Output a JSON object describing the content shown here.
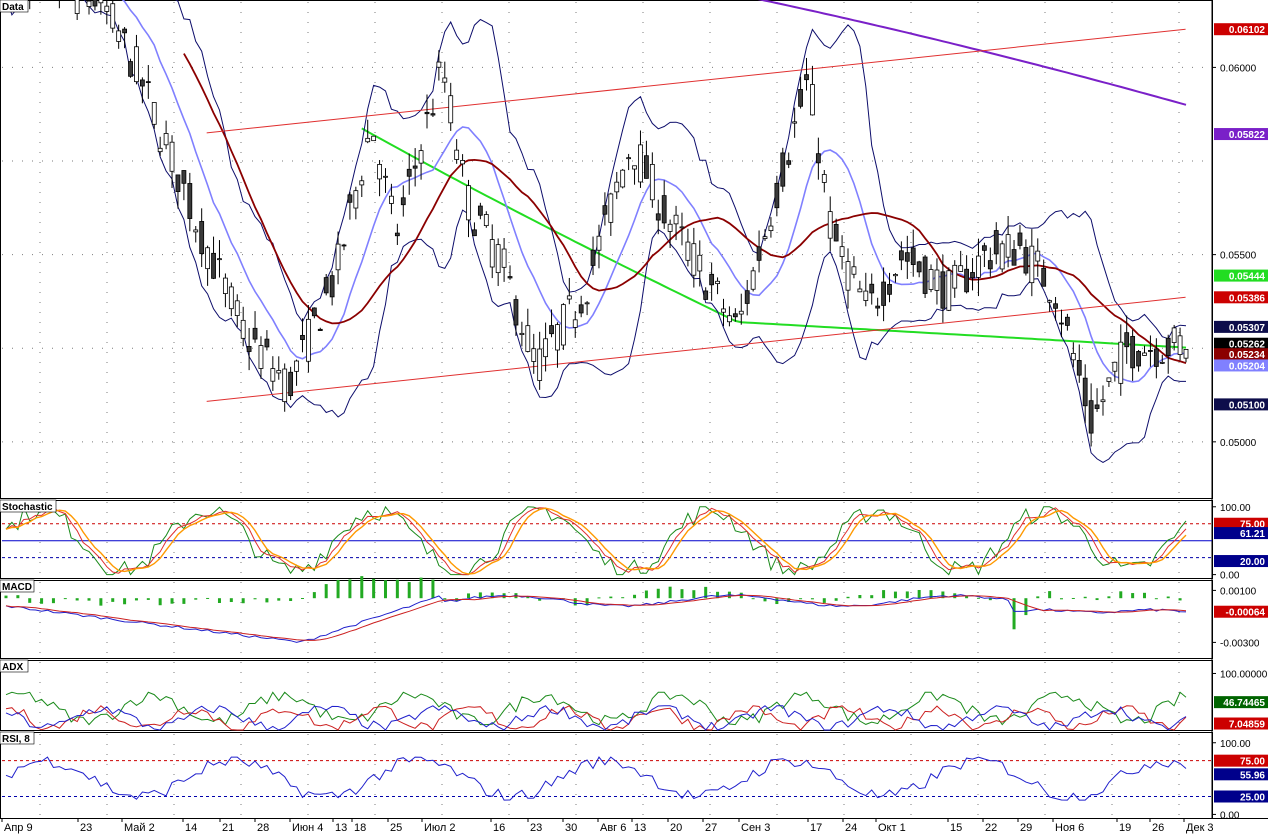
{
  "panes": {
    "main": {
      "label": "Data"
    },
    "stoch": {
      "label": "Stochastic"
    },
    "macd": {
      "label": "MACD"
    },
    "adx": {
      "label": "ADX"
    },
    "rsi": {
      "label": "RSI, 8"
    }
  },
  "colors": {
    "candle_up": "#ffffff",
    "candle_down": "#3a3a3a",
    "bollinger": "#0d0d6b",
    "ma_fast": "#8080ff",
    "ma_mid": "#8b0000",
    "ma_green": "#22dd22",
    "ma_purple": "#7a20c8",
    "channel": "#e03030",
    "grid_dots": "#444444"
  },
  "chart_data": [
    {
      "pane": "main",
      "type": "candlestick",
      "ylim": [
        0.0485,
        0.0618
      ],
      "y_ticks": [
        "0.06000",
        "0.05500",
        "0.05000"
      ],
      "x_ticks": [
        "Апр 9",
        "23",
        "Май 2",
        "14",
        "21",
        "28",
        "Июн 4",
        "13",
        "18",
        "25",
        "Июл 2",
        "16",
        "23",
        "30",
        "Авг 6",
        "13",
        "20",
        "27",
        "Сен 3",
        "17",
        "24",
        "Окт 1",
        "15",
        "22",
        "29",
        "Ноя 6",
        "19",
        "26",
        "Дек 3"
      ],
      "value_badges": [
        {
          "text": "0.06102",
          "value": 0.06102,
          "color": "#cc0000"
        },
        {
          "text": "0.05822",
          "value": 0.05822,
          "color": "#7a20c8"
        },
        {
          "text": "0.05444",
          "value": 0.05444,
          "color": "#22dd22"
        },
        {
          "text": "0.05386",
          "value": 0.05386,
          "color": "#cc0000"
        },
        {
          "text": "0.05307",
          "value": 0.05307,
          "color": "#0d0d4b"
        },
        {
          "text": "0.05262",
          "value": 0.05262,
          "color": "#000000"
        },
        {
          "text": "0.05234",
          "value": 0.05234,
          "color": "#8b0000"
        },
        {
          "text": "0.05204",
          "value": 0.05204,
          "color": "#8080ff"
        },
        {
          "text": "0.05100",
          "value": 0.051,
          "color": "#0d0d4b"
        }
      ],
      "channel_lines": [
        {
          "x": [
            0.163,
            0.935
          ],
          "y": [
            0.05825,
            0.06102
          ]
        },
        {
          "x": [
            0.163,
            0.935
          ],
          "y": [
            0.05108,
            0.05386
          ]
        }
      ]
    },
    {
      "pane": "stochastic",
      "type": "line",
      "ylim": [
        -5,
        110
      ],
      "y_ticks": [
        "100.00",
        "0.00"
      ],
      "levels": [
        75,
        50,
        25
      ],
      "value_badges": [
        {
          "text": "75.00",
          "value": 75,
          "color": "#cc0000"
        },
        {
          "text": "61.21",
          "value": 61.21,
          "color": "#00008b"
        },
        {
          "text": "20.00",
          "value": 20,
          "color": "#00008b"
        }
      ]
    },
    {
      "pane": "macd",
      "type": "line",
      "ylim": [
        -0.0042,
        0.0018
      ],
      "y_ticks": [
        "0.00100",
        "-0.00300"
      ],
      "value_badges": [
        {
          "text": "-0.00064",
          "value": -0.00064,
          "color": "#cc0000"
        }
      ]
    },
    {
      "pane": "adx",
      "type": "line",
      "ylim": [
        -5,
        125
      ],
      "y_ticks": [
        "100.00000"
      ],
      "value_badges": [
        {
          "text": "46.74465",
          "value": 46.74465,
          "color": "#006400"
        },
        {
          "text": "7.04859",
          "value": 7.04859,
          "color": "#cc0000"
        }
      ]
    },
    {
      "pane": "rsi",
      "type": "line",
      "ylim": [
        -5,
        115
      ],
      "y_ticks": [
        "100.00",
        "0.00"
      ],
      "levels": [
        75,
        25
      ],
      "value_badges": [
        {
          "text": "75.00",
          "value": 75,
          "color": "#cc0000"
        },
        {
          "text": "55.96",
          "value": 55.96,
          "color": "#00008b"
        },
        {
          "text": "25.00",
          "value": 25,
          "color": "#00008b"
        }
      ]
    }
  ]
}
